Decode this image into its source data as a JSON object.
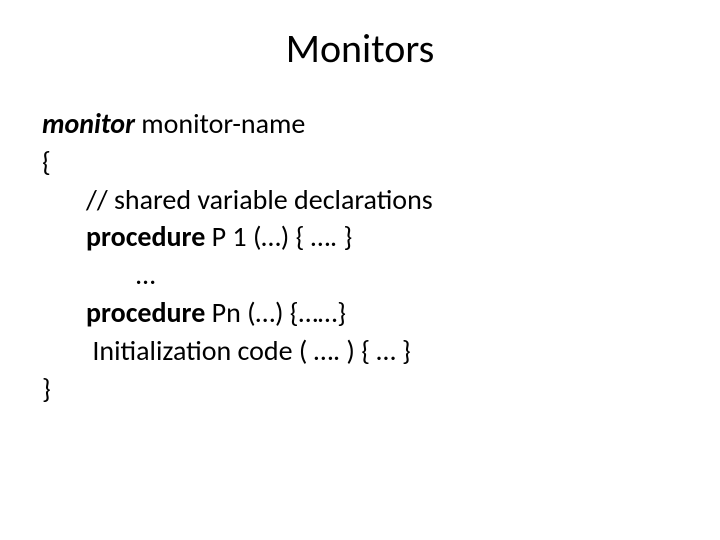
{
  "title": "Monitors",
  "lines": {
    "l1a": "monitor",
    "l1b": " monitor-name",
    "l2": "{",
    "l3": "// shared variable declarations",
    "l4a": "procedure",
    "l4b": " P 1 (…) { …. }",
    "l5": "…",
    "l6a": "procedure",
    "l6b": " Pn (…) {……}",
    "l7": " Initialization code ( …. ) { … }",
    "l8": "}"
  },
  "colors": {
    "text": "#000000",
    "background": "#ffffff"
  },
  "fontsize": {
    "title": 40,
    "body": 28
  }
}
